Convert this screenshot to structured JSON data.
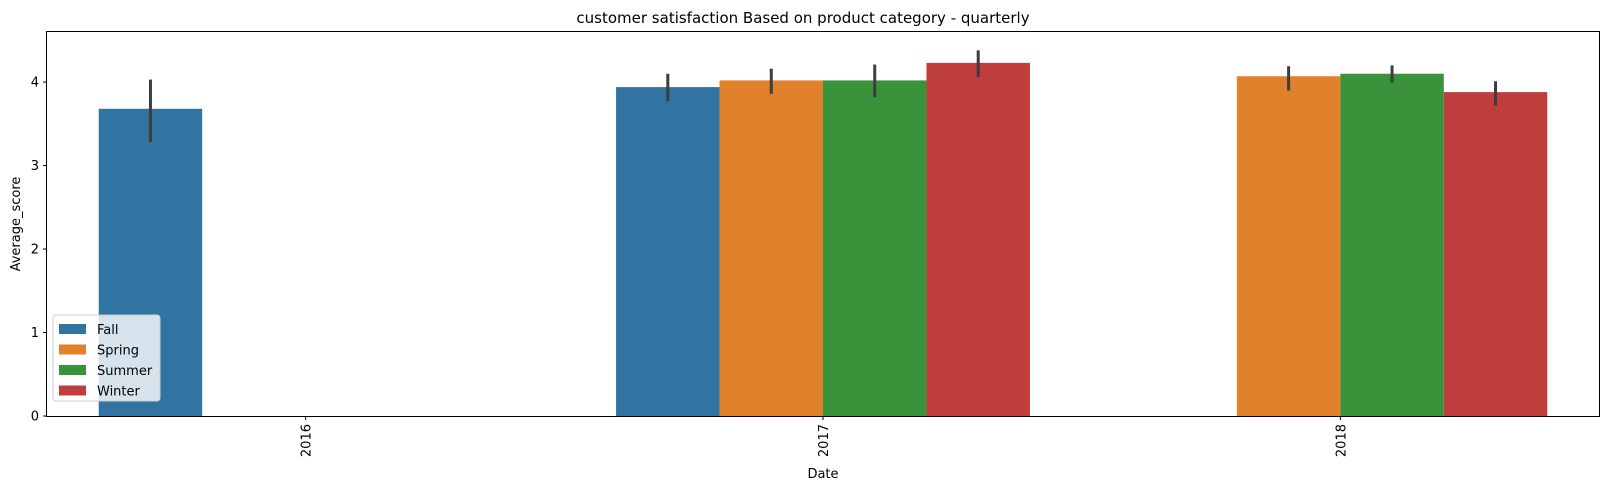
{
  "chart_data": {
    "type": "bar",
    "title": "customer satisfaction Based on product category - quarterly",
    "xlabel": "Date",
    "ylabel": "Average_score",
    "categories": [
      "2016",
      "2017",
      "2018"
    ],
    "ylim": [
      0,
      4.6
    ],
    "yticks": [
      "0",
      "1",
      "2",
      "3",
      "4"
    ],
    "grid": false,
    "legend_position": "lower-left",
    "series": [
      {
        "name": "Fall",
        "color": "#3274a1",
        "values": [
          3.68,
          3.94,
          null
        ],
        "err_low": [
          3.28,
          3.77,
          null
        ],
        "err_high": [
          4.03,
          4.1,
          null
        ]
      },
      {
        "name": "Spring",
        "color": "#e1812c",
        "values": [
          null,
          4.02,
          4.07
        ],
        "err_low": [
          null,
          3.86,
          3.9
        ],
        "err_high": [
          null,
          4.16,
          4.19
        ]
      },
      {
        "name": "Summer",
        "color": "#3a923a",
        "values": [
          null,
          4.02,
          4.1
        ],
        "err_low": [
          null,
          3.82,
          3.99
        ],
        "err_high": [
          null,
          4.21,
          4.2
        ]
      },
      {
        "name": "Winter",
        "color": "#c03d3e",
        "values": [
          null,
          4.23,
          3.88
        ],
        "err_low": [
          null,
          4.06,
          3.72
        ],
        "err_high": [
          null,
          4.38,
          4.01
        ]
      }
    ]
  }
}
